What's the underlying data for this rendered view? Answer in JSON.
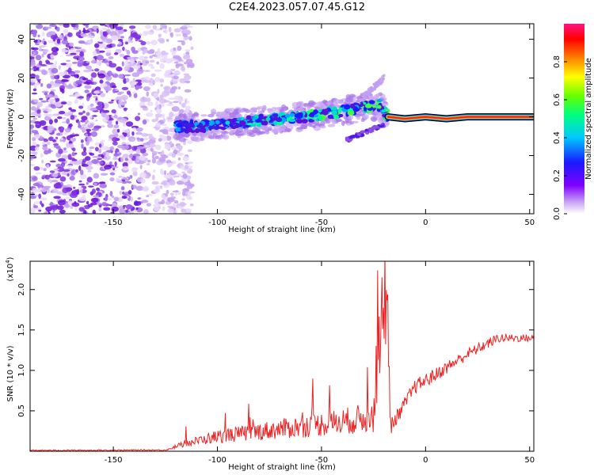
{
  "title": "C2E4.2023.057.07.45.G12",
  "chart_data": [
    {
      "type": "heatmap",
      "xlabel": "Height of straight line (km)",
      "ylabel": "Frequency (Hz)",
      "xlim": [
        -190,
        52
      ],
      "ylim": [
        -50,
        48
      ],
      "xticks": [
        -150,
        -100,
        -50,
        0,
        50
      ],
      "yticks": [
        -40,
        -20,
        0,
        20,
        40
      ],
      "colorbar": {
        "label": "Normalized spectral amplitude",
        "range": [
          0,
          1
        ],
        "ticks": [
          "0.0",
          "0.2",
          "0.4",
          "0.6",
          "0.8"
        ]
      },
      "ridge": [
        {
          "x": -122,
          "y": -5
        },
        {
          "x": -110,
          "y": -5
        },
        {
          "x": -100,
          "y": -4
        },
        {
          "x": -90,
          "y": -3
        },
        {
          "x": -80,
          "y": -2
        },
        {
          "x": -70,
          "y": -1
        },
        {
          "x": -60,
          "y": 0
        },
        {
          "x": -50,
          "y": 1
        },
        {
          "x": -40,
          "y": 3
        },
        {
          "x": -30,
          "y": 5
        },
        {
          "x": -22,
          "y": 6
        },
        {
          "x": -18,
          "y": 0
        },
        {
          "x": -10,
          "y": -1
        },
        {
          "x": 0,
          "y": 0
        },
        {
          "x": 10,
          "y": -1
        },
        {
          "x": 20,
          "y": 0
        },
        {
          "x": 52,
          "y": 0
        }
      ],
      "noise_region": [
        -190,
        -120
      ]
    },
    {
      "type": "line",
      "xlabel": "Height of straight line (km)",
      "ylabel": "SNR (10 * v/v)",
      "yscale_label": "(x10",
      "yscale_exp": "4",
      "xlim": [
        -190,
        52
      ],
      "ylim": [
        0,
        23500
      ],
      "xticks": [
        -150,
        -100,
        -50,
        0,
        50
      ],
      "yticks": [
        "0.5",
        "1.0",
        "1.5",
        "2.0"
      ],
      "color": "#ee2222",
      "series_profile": [
        {
          "x": -190,
          "y": 100
        },
        {
          "x": -125,
          "y": 150
        },
        {
          "x": -115,
          "y": 800
        },
        {
          "x": -100,
          "y": 1500
        },
        {
          "x": -80,
          "y": 2000
        },
        {
          "x": -60,
          "y": 2500
        },
        {
          "x": -40,
          "y": 3000
        },
        {
          "x": -25,
          "y": 3500
        },
        {
          "x": -21,
          "y": 16000
        },
        {
          "x": -19,
          "y": 23500
        },
        {
          "x": -17,
          "y": 3000
        },
        {
          "x": -12,
          "y": 5000
        },
        {
          "x": -5,
          "y": 8000
        },
        {
          "x": 5,
          "y": 9500
        },
        {
          "x": 20,
          "y": 12000
        },
        {
          "x": 35,
          "y": 14000
        },
        {
          "x": 52,
          "y": 14000
        }
      ]
    }
  ]
}
